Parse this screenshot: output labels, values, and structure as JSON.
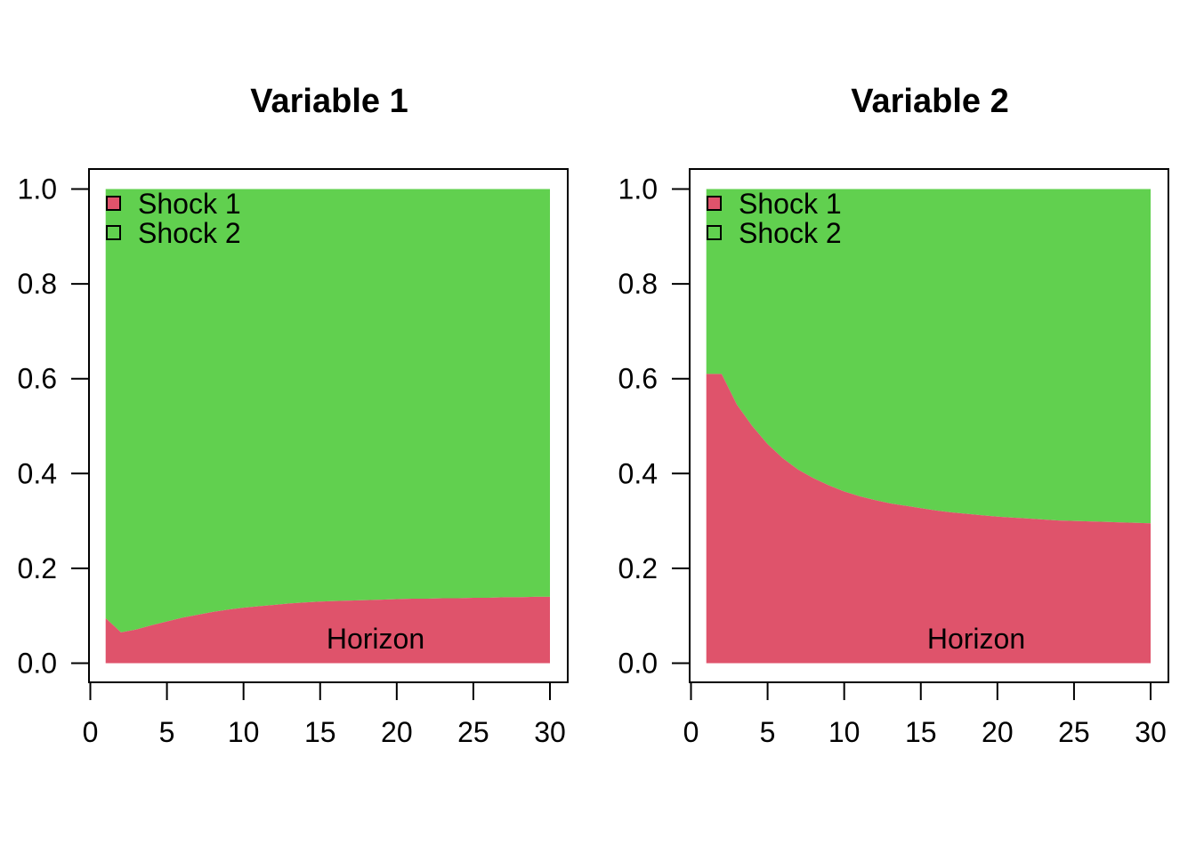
{
  "figure": {
    "background": "#FFFFFF"
  },
  "chart_data": [
    {
      "type": "area",
      "stacked": true,
      "title": "Variable 1",
      "xlabel": "Horizon",
      "legend_position": "top-left",
      "grid": false,
      "ylim": [
        0,
        1
      ],
      "xlim": [
        1,
        30
      ],
      "x": [
        1,
        2,
        3,
        4,
        5,
        6,
        7,
        8,
        9,
        10,
        11,
        12,
        13,
        14,
        15,
        16,
        17,
        18,
        19,
        20,
        21,
        22,
        23,
        24,
        25,
        26,
        27,
        28,
        29,
        30
      ],
      "x_ticks": {
        "values": [
          0,
          5,
          10,
          15,
          20,
          25,
          30
        ],
        "labels": [
          "0",
          "5",
          "10",
          "15",
          "20",
          "25",
          "30"
        ]
      },
      "y_ticks": {
        "values": [
          0,
          0.2,
          0.4,
          0.6,
          0.8,
          1
        ],
        "labels": [
          "0.0",
          "0.2",
          "0.4",
          "0.6",
          "0.8",
          "1.0"
        ]
      },
      "series": [
        {
          "name": "Shock 1",
          "color": "#DF536B",
          "values": [
            0.095,
            0.065,
            0.071,
            0.08,
            0.088,
            0.096,
            0.102,
            0.108,
            0.113,
            0.117,
            0.12,
            0.123,
            0.126,
            0.128,
            0.13,
            0.131,
            0.132,
            0.133,
            0.134,
            0.135,
            0.136,
            0.136,
            0.137,
            0.137,
            0.138,
            0.138,
            0.139,
            0.139,
            0.14,
            0.14
          ]
        },
        {
          "name": "Shock 2",
          "color": "#61D04F",
          "values": [
            0.905,
            0.935,
            0.929,
            0.92,
            0.912,
            0.904,
            0.898,
            0.892,
            0.887,
            0.883,
            0.88,
            0.877,
            0.874,
            0.872,
            0.87,
            0.869,
            0.868,
            0.867,
            0.866,
            0.865,
            0.864,
            0.864,
            0.863,
            0.863,
            0.862,
            0.862,
            0.861,
            0.861,
            0.86,
            0.86
          ]
        }
      ]
    },
    {
      "type": "area",
      "stacked": true,
      "title": "Variable 2",
      "xlabel": "Horizon",
      "legend_position": "top-left",
      "grid": false,
      "ylim": [
        0,
        1
      ],
      "xlim": [
        1,
        30
      ],
      "x": [
        1,
        2,
        3,
        4,
        5,
        6,
        7,
        8,
        9,
        10,
        11,
        12,
        13,
        14,
        15,
        16,
        17,
        18,
        19,
        20,
        21,
        22,
        23,
        24,
        25,
        26,
        27,
        28,
        29,
        30
      ],
      "x_ticks": {
        "values": [
          0,
          5,
          10,
          15,
          20,
          25,
          30
        ],
        "labels": [
          "0",
          "5",
          "10",
          "15",
          "20",
          "25",
          "30"
        ]
      },
      "y_ticks": {
        "values": [
          0,
          0.2,
          0.4,
          0.6,
          0.8,
          1
        ],
        "labels": [
          "0.0",
          "0.2",
          "0.4",
          "0.6",
          "0.8",
          "1.0"
        ]
      },
      "series": [
        {
          "name": "Shock 1",
          "color": "#DF536B",
          "values": [
            0.61,
            0.61,
            0.545,
            0.5,
            0.462,
            0.432,
            0.408,
            0.39,
            0.375,
            0.362,
            0.352,
            0.344,
            0.337,
            0.332,
            0.327,
            0.322,
            0.318,
            0.315,
            0.312,
            0.309,
            0.307,
            0.305,
            0.303,
            0.301,
            0.3,
            0.299,
            0.298,
            0.297,
            0.296,
            0.295
          ]
        },
        {
          "name": "Shock 2",
          "color": "#61D04F",
          "values": [
            0.39,
            0.39,
            0.455,
            0.5,
            0.538,
            0.568,
            0.592,
            0.61,
            0.625,
            0.638,
            0.648,
            0.656,
            0.663,
            0.668,
            0.673,
            0.678,
            0.682,
            0.685,
            0.688,
            0.691,
            0.693,
            0.695,
            0.697,
            0.699,
            0.7,
            0.701,
            0.702,
            0.703,
            0.704,
            0.705
          ]
        }
      ]
    }
  ]
}
